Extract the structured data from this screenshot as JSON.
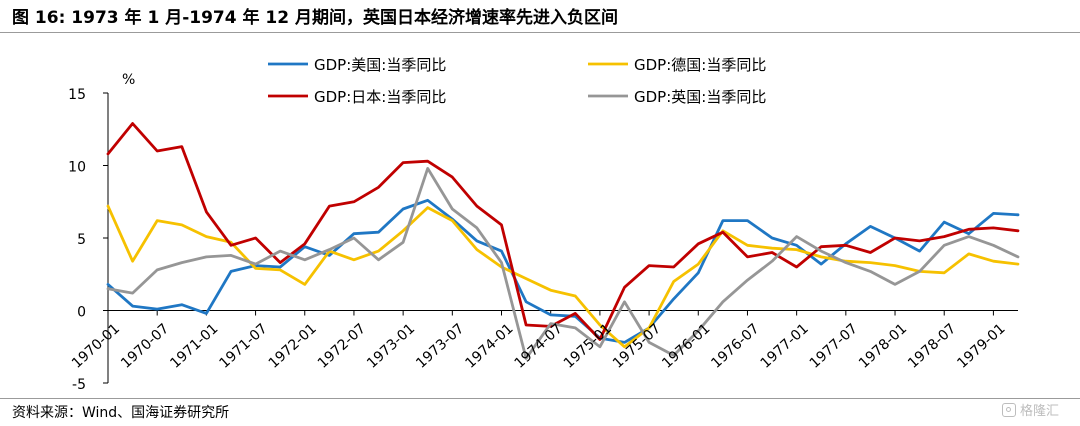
{
  "header": {
    "title": "图 16: 1973 年 1 月-1974 年 12 月期间，英国日本经济增速率先进入负区间"
  },
  "footer": {
    "source": "资料来源：Wind、国海证券研究所",
    "watermark": "格隆汇"
  },
  "chart_data": {
    "type": "line",
    "ylabel": "%",
    "ylim": [
      -5,
      15
    ],
    "yticks": [
      -5,
      0,
      5,
      10,
      15
    ],
    "grid": false,
    "legend_position": "top-center",
    "x": [
      "1970-01",
      "1970-04",
      "1970-07",
      "1970-10",
      "1971-01",
      "1971-04",
      "1971-07",
      "1971-10",
      "1972-01",
      "1972-04",
      "1972-07",
      "1972-10",
      "1973-01",
      "1973-04",
      "1973-07",
      "1973-10",
      "1974-01",
      "1974-04",
      "1974-07",
      "1974-10",
      "1975-01",
      "1975-04",
      "1975-07",
      "1975-10",
      "1976-01",
      "1976-04",
      "1976-07",
      "1976-10",
      "1977-01",
      "1977-04",
      "1977-07",
      "1977-10",
      "1978-01",
      "1978-04",
      "1978-07",
      "1978-10",
      "1979-01",
      "1979-04"
    ],
    "xticklabels": [
      "1970-01",
      "1970-07",
      "1971-01",
      "1971-07",
      "1972-01",
      "1972-07",
      "1973-01",
      "1973-07",
      "1974-01",
      "1974-07",
      "1975-01",
      "1975-07",
      "1976-01",
      "1976-07",
      "1977-01",
      "1977-07",
      "1978-01",
      "1978-07",
      "1979-01"
    ],
    "series": [
      {
        "name": "GDP:美国:当季同比",
        "color": "#1f77c4",
        "values": [
          1.8,
          0.3,
          0.1,
          0.4,
          -0.2,
          2.7,
          3.1,
          3.0,
          4.4,
          3.8,
          5.3,
          5.4,
          7.0,
          7.6,
          6.3,
          4.8,
          4.1,
          0.6,
          -0.3,
          -0.4,
          -1.9,
          -2.2,
          -1.2,
          0.8,
          2.6,
          6.2,
          6.2,
          5.0,
          4.5,
          3.2,
          4.6,
          5.8,
          5.0,
          4.1,
          6.1,
          5.3,
          6.7,
          6.6
        ]
      },
      {
        "name": "GDP:德国:当季同比",
        "color": "#f6c100",
        "values": [
          7.2,
          3.4,
          6.2,
          5.9,
          5.1,
          4.7,
          2.9,
          2.8,
          1.8,
          4.1,
          3.5,
          4.1,
          5.5,
          7.1,
          6.2,
          4.2,
          3.0,
          2.2,
          1.4,
          1.0,
          -1.0,
          -2.5,
          -1.2,
          2.0,
          3.2,
          5.5,
          4.5,
          4.3,
          4.2,
          3.7,
          3.4,
          3.3,
          3.1,
          2.7,
          2.6,
          3.9,
          3.4,
          3.2
        ]
      },
      {
        "name": "GDP:日本:当季同比",
        "color": "#c00000",
        "values": [
          10.8,
          12.9,
          11.0,
          11.3,
          6.8,
          4.5,
          5.0,
          3.3,
          4.6,
          7.2,
          7.5,
          8.5,
          10.2,
          10.3,
          9.2,
          7.2,
          5.9,
          -1.0,
          -1.1,
          -0.2,
          -2.0,
          1.6,
          3.1,
          3.0,
          4.6,
          5.4,
          3.7,
          4.0,
          3.0,
          4.4,
          4.5,
          4.0,
          5.0,
          4.8,
          5.1,
          5.6,
          5.7,
          5.5
        ]
      },
      {
        "name": "GDP:英国:当季同比",
        "color": "#969696",
        "values": [
          1.5,
          1.2,
          2.8,
          3.3,
          3.7,
          3.8,
          3.2,
          4.1,
          3.5,
          4.2,
          5.0,
          3.5,
          4.7,
          9.8,
          7.0,
          5.7,
          3.3,
          -3.3,
          -0.9,
          -1.2,
          -2.5,
          0.6,
          -2.2,
          -3.1,
          -1.4,
          0.6,
          2.1,
          3.4,
          5.1,
          4.1,
          3.3,
          2.7,
          1.8,
          2.7,
          4.5,
          5.1,
          4.5,
          3.7
        ]
      }
    ]
  }
}
